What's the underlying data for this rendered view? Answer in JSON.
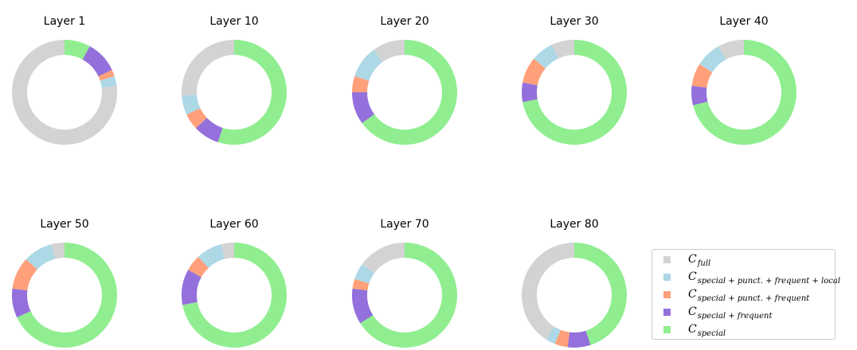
{
  "chart_data": {
    "type": "pie",
    "style": "donut",
    "colors": {
      "full": "#d3d3d3",
      "special_punct_frequent_local": "#add8e6",
      "special_punct_frequent": "#ffa07a",
      "special_frequent": "#9370db",
      "special": "#90ee90"
    },
    "legend": [
      {
        "key": "special",
        "main": "C",
        "sub": "special",
        "color": "#90ee90"
      },
      {
        "key": "special_frequent",
        "main": "C",
        "sub": "special + frequent",
        "color": "#9370db"
      },
      {
        "key": "special_punct_frequent",
        "main": "C",
        "sub": "special + punct. + frequent",
        "color": "#ffa07a"
      },
      {
        "key": "special_punct_frequent_local",
        "main": "C",
        "sub": "special + punct. + frequent + local",
        "color": "#add8e6"
      },
      {
        "key": "full",
        "main": "C",
        "sub": "full",
        "color": "#d3d3d3"
      }
    ],
    "legend_placement": "bottom-right",
    "charts": [
      {
        "title": "Layer 1",
        "values": {
          "special": 8,
          "special_frequent": 10,
          "special_punct_frequent": 2,
          "special_punct_frequent_local": 3,
          "full": 77
        }
      },
      {
        "title": "Layer 10",
        "values": {
          "special": 55,
          "special_frequent": 8,
          "special_punct_frequent": 5,
          "special_punct_frequent_local": 6,
          "full": 26
        }
      },
      {
        "title": "Layer 20",
        "values": {
          "special": 65,
          "special_frequent": 10,
          "special_punct_frequent": 5,
          "special_punct_frequent_local": 10,
          "full": 10
        }
      },
      {
        "title": "Layer 30",
        "values": {
          "special": 72,
          "special_frequent": 6,
          "special_punct_frequent": 8,
          "special_punct_frequent_local": 7,
          "full": 7
        }
      },
      {
        "title": "Layer 40",
        "values": {
          "special": 71,
          "special_frequent": 6,
          "special_punct_frequent": 7,
          "special_punct_frequent_local": 8,
          "full": 8
        }
      },
      {
        "title": "Layer 50",
        "values": {
          "special": 68,
          "special_frequent": 9,
          "special_punct_frequent": 10,
          "special_punct_frequent_local": 9,
          "full": 4
        }
      },
      {
        "title": "Layer 60",
        "values": {
          "special": 72,
          "special_frequent": 11,
          "special_punct_frequent": 5,
          "special_punct_frequent_local": 8,
          "full": 4
        }
      },
      {
        "title": "Layer 70",
        "values": {
          "special": 66,
          "special_frequent": 11,
          "special_punct_frequent": 3,
          "special_punct_frequent_local": 5,
          "full": 15
        }
      },
      {
        "title": "Layer 80",
        "values": {
          "special": 45,
          "special_frequent": 7,
          "special_punct_frequent": 4,
          "special_punct_frequent_local": 3,
          "full": 41
        }
      }
    ]
  }
}
